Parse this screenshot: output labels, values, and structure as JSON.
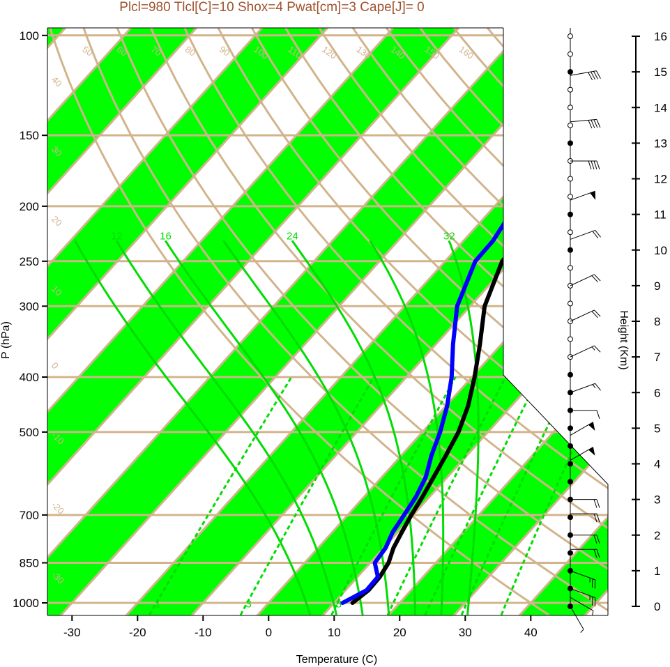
{
  "title": "Plcl=980 Tlcl[C]=10 Shox=4 Pwat[cm]=3 Cape[J]= 0",
  "chart_data": {
    "type": "line",
    "title": "Plcl=980 Tlcl[C]=10 Shox=4 Pwat[cm]=3 Cape[J]= 0",
    "xlabel": "Temperature (C)",
    "ylabel": "P (hPa)",
    "y2label": "Height (Km)",
    "x_ticks": [
      "-30",
      "-20",
      "-10",
      "0",
      "10",
      "20",
      "30",
      "40"
    ],
    "y_ticks": [
      "100",
      "150",
      "200",
      "250",
      "300",
      "400",
      "500",
      "700",
      "850",
      "1000"
    ],
    "height_ticks": [
      "0",
      "1",
      "2",
      "3",
      "4",
      "5",
      "6",
      "7",
      "8",
      "9",
      "10",
      "11",
      "12",
      "13",
      "14",
      "15",
      "16"
    ],
    "height_tick_values": [
      0,
      1,
      2,
      3,
      4,
      5,
      6,
      7,
      8,
      9,
      10,
      11,
      12,
      13,
      14,
      15,
      16
    ],
    "xlim": [
      -33,
      52
    ],
    "ylim": [
      1050,
      100
    ],
    "y_scale": "log",
    "isotherm_labels": [
      "-30",
      "-20",
      "-10",
      "0",
      "10",
      "20",
      "30"
    ],
    "isotherm_label_values": [
      -30,
      -20,
      -10,
      0,
      10,
      20,
      30
    ],
    "dry_adiabat_labels": [
      "50",
      "60",
      "70",
      "80",
      "90",
      "100",
      "110",
      "120",
      "130",
      "140",
      "150",
      "160"
    ],
    "moist_adiabat_labels": [
      "12",
      "16",
      "24",
      "32"
    ],
    "mixing_ratio_labels": [
      "1",
      "3",
      "8"
    ],
    "theta_axis_labels": [
      "40",
      "30",
      "20",
      "10",
      "0",
      "-10",
      "-20",
      "-30"
    ],
    "series": [
      {
        "name": "Temperature",
        "color": "#000000",
        "pressure": [
          1000,
          950,
          900,
          850,
          800,
          750,
          700,
          650,
          600,
          550,
          500,
          450,
          400,
          350,
          300,
          250,
          235,
          220,
          200,
          180,
          160,
          140,
          125,
          112
        ],
        "values": [
          12.8,
          13.5,
          13.4,
          12.8,
          11.5,
          10.6,
          9.7,
          8.9,
          7.9,
          6.8,
          5.5,
          3.4,
          0.4,
          -3.3,
          -7.8,
          -11.3,
          -11.4,
          -10.5,
          -7.5,
          -3.2,
          2.2,
          5.3,
          6.9,
          9.0
        ]
      },
      {
        "name": "Dewpoint",
        "color": "#0000ff",
        "pressure": [
          1000,
          950,
          900,
          850,
          800,
          750,
          700,
          650,
          600,
          550,
          500,
          450,
          400,
          350,
          300,
          250,
          230,
          210,
          190,
          175,
          160,
          140,
          125,
          112
        ],
        "values": [
          11.3,
          13.2,
          13.1,
          10.7,
          10.3,
          9.2,
          8.6,
          7.9,
          6.7,
          4.6,
          2.7,
          0.2,
          -3.1,
          -7.4,
          -12.0,
          -15.4,
          -15.5,
          -16.4,
          -18.7,
          -20.7,
          -20.3,
          -17.4,
          -14.8,
          -12.5
        ]
      }
    ],
    "wind_barbs": [
      {
        "height_km": 0.0,
        "speed_kt": 5,
        "dir_deg": 330
      },
      {
        "height_km": 0.25,
        "speed_kt": 5,
        "dir_deg": 300
      },
      {
        "height_km": 0.5,
        "speed_kt": 25,
        "dir_deg": 290
      },
      {
        "height_km": 1.0,
        "speed_kt": 25,
        "dir_deg": 290
      },
      {
        "height_km": 1.6,
        "speed_kt": 20,
        "dir_deg": 270
      },
      {
        "height_km": 2.0,
        "speed_kt": 20,
        "dir_deg": 270
      },
      {
        "height_km": 2.6,
        "speed_kt": 20,
        "dir_deg": 270
      },
      {
        "height_km": 3.0,
        "speed_kt": 20,
        "dir_deg": 270
      },
      {
        "height_km": 4.1,
        "speed_kt": 50,
        "dir_deg": 240
      },
      {
        "height_km": 4.8,
        "speed_kt": 50,
        "dir_deg": 240
      },
      {
        "height_km": 5.5,
        "speed_kt": 10,
        "dir_deg": 270
      },
      {
        "height_km": 6.0,
        "speed_kt": 15,
        "dir_deg": 250
      },
      {
        "height_km": 7.0,
        "speed_kt": 15,
        "dir_deg": 245
      },
      {
        "height_km": 8.0,
        "speed_kt": 20,
        "dir_deg": 245
      },
      {
        "height_km": 9.0,
        "speed_kt": 20,
        "dir_deg": 245
      },
      {
        "height_km": 10.3,
        "speed_kt": 20,
        "dir_deg": 250
      },
      {
        "height_km": 11.4,
        "speed_kt": 50,
        "dir_deg": 250
      },
      {
        "height_km": 12.5,
        "speed_kt": 40,
        "dir_deg": 270
      },
      {
        "height_km": 13.6,
        "speed_kt": 40,
        "dir_deg": 265
      },
      {
        "height_km": 14.9,
        "speed_kt": 40,
        "dir_deg": 260
      }
    ],
    "grid": true
  },
  "colors": {
    "background": "#ffffff",
    "band": "#00ff00",
    "isotherm": "#d2b48c",
    "moist_adiabat": "#00dd00",
    "mixing_ratio": "#00dd00",
    "temperature": "#000000",
    "dewpoint": "#0000ff",
    "title": "#a0522d"
  }
}
